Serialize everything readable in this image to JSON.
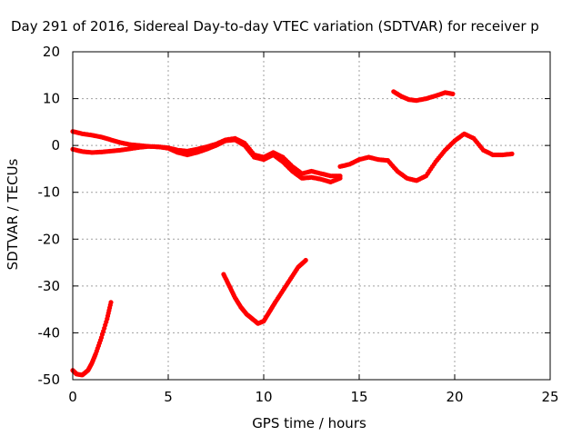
{
  "chart_data": {
    "type": "scatter",
    "title": "Day 291 of 2016, Sidereal Day-to-day VTEC variation (SDTVAR) for receiver p",
    "xlabel": "GPS time / hours",
    "ylabel": "SDTVAR / TECUs",
    "xlim": [
      0,
      25
    ],
    "ylim": [
      -50,
      20
    ],
    "xticks": [
      0,
      5,
      10,
      15,
      20,
      25
    ],
    "yticks": [
      -50,
      -40,
      -30,
      -20,
      -10,
      0,
      10,
      20
    ],
    "xtick_labels": [
      "0",
      "5",
      "10",
      "15",
      "20",
      "25"
    ],
    "ytick_labels": [
      "-50",
      "-40",
      "-30",
      "-20",
      "-10",
      "0",
      "10",
      "20"
    ],
    "grid": true,
    "legend": "none",
    "marker_color": "#ff0000",
    "series": [
      {
        "x": [
          0.0,
          0.5,
          1.0,
          1.5,
          2.0,
          2.5,
          3.0,
          3.5,
          4.0,
          4.5,
          5.0,
          5.5,
          6.0,
          6.5,
          7.0,
          7.5,
          8.0,
          8.5,
          9.0,
          9.5,
          10.0,
          10.5,
          11.0,
          11.5,
          12.0,
          12.5,
          13.0,
          13.5,
          14.0
        ],
        "y": [
          3.0,
          2.5,
          2.2,
          1.8,
          1.2,
          0.6,
          0.2,
          0.0,
          -0.2,
          -0.3,
          -0.5,
          -1.0,
          -1.2,
          -0.8,
          -0.3,
          0.3,
          1.2,
          1.5,
          0.5,
          -2.0,
          -2.5,
          -1.5,
          -2.5,
          -4.5,
          -6.0,
          -5.5,
          -6.0,
          -6.5,
          -6.5
        ]
      },
      {
        "x": [
          0.0,
          0.5,
          1.0,
          1.5,
          2.0,
          2.5,
          3.0,
          3.5,
          4.0,
          4.5,
          5.0,
          5.5,
          6.0,
          6.5,
          7.0,
          7.5,
          8.0,
          8.5,
          9.0,
          9.5,
          10.0,
          10.5,
          11.0,
          11.5,
          12.0,
          12.5,
          13.0,
          13.5,
          14.0
        ],
        "y": [
          -0.8,
          -1.3,
          -1.5,
          -1.4,
          -1.2,
          -1.0,
          -0.7,
          -0.4,
          -0.2,
          -0.3,
          -0.6,
          -1.5,
          -2.0,
          -1.5,
          -0.8,
          0.0,
          1.0,
          1.2,
          0.0,
          -2.5,
          -3.0,
          -2.0,
          -3.5,
          -5.5,
          -7.0,
          -6.8,
          -7.2,
          -7.8,
          -7.0
        ]
      },
      {
        "x": [
          14.0,
          14.5,
          15.0,
          15.5,
          16.0,
          16.5,
          17.0,
          17.5,
          18.0,
          18.5,
          19.0,
          19.5,
          20.0,
          20.5,
          21.0,
          21.5,
          22.0,
          22.5,
          23.0
        ],
        "y": [
          -4.5,
          -4.0,
          -3.0,
          -2.5,
          -3.0,
          -3.2,
          -5.5,
          -7.0,
          -7.5,
          -6.5,
          -3.5,
          -1.0,
          1.0,
          2.5,
          1.5,
          -1.0,
          -2.0,
          -2.0,
          -1.8
        ]
      },
      {
        "x": [
          0.0,
          0.2,
          0.5,
          0.8,
          1.0,
          1.2,
          1.5,
          1.8,
          2.0
        ],
        "y": [
          -48.0,
          -48.8,
          -49.0,
          -48.0,
          -46.5,
          -44.5,
          -41.0,
          -37.0,
          -33.5
        ]
      },
      {
        "x": [
          7.9,
          8.2,
          8.5,
          8.8,
          9.1,
          9.4,
          9.7,
          10.0,
          10.3,
          10.6,
          11.0,
          11.4,
          11.8,
          12.2
        ],
        "y": [
          -27.5,
          -30.0,
          -32.5,
          -34.5,
          -36.0,
          -37.0,
          -38.0,
          -37.5,
          -35.5,
          -33.5,
          -31.0,
          -28.5,
          -26.0,
          -24.5
        ]
      },
      {
        "x": [
          16.8,
          17.2,
          17.6,
          18.0,
          18.5,
          19.0,
          19.5,
          19.9
        ],
        "y": [
          11.5,
          10.5,
          9.8,
          9.6,
          10.0,
          10.6,
          11.3,
          11.0
        ]
      }
    ]
  }
}
